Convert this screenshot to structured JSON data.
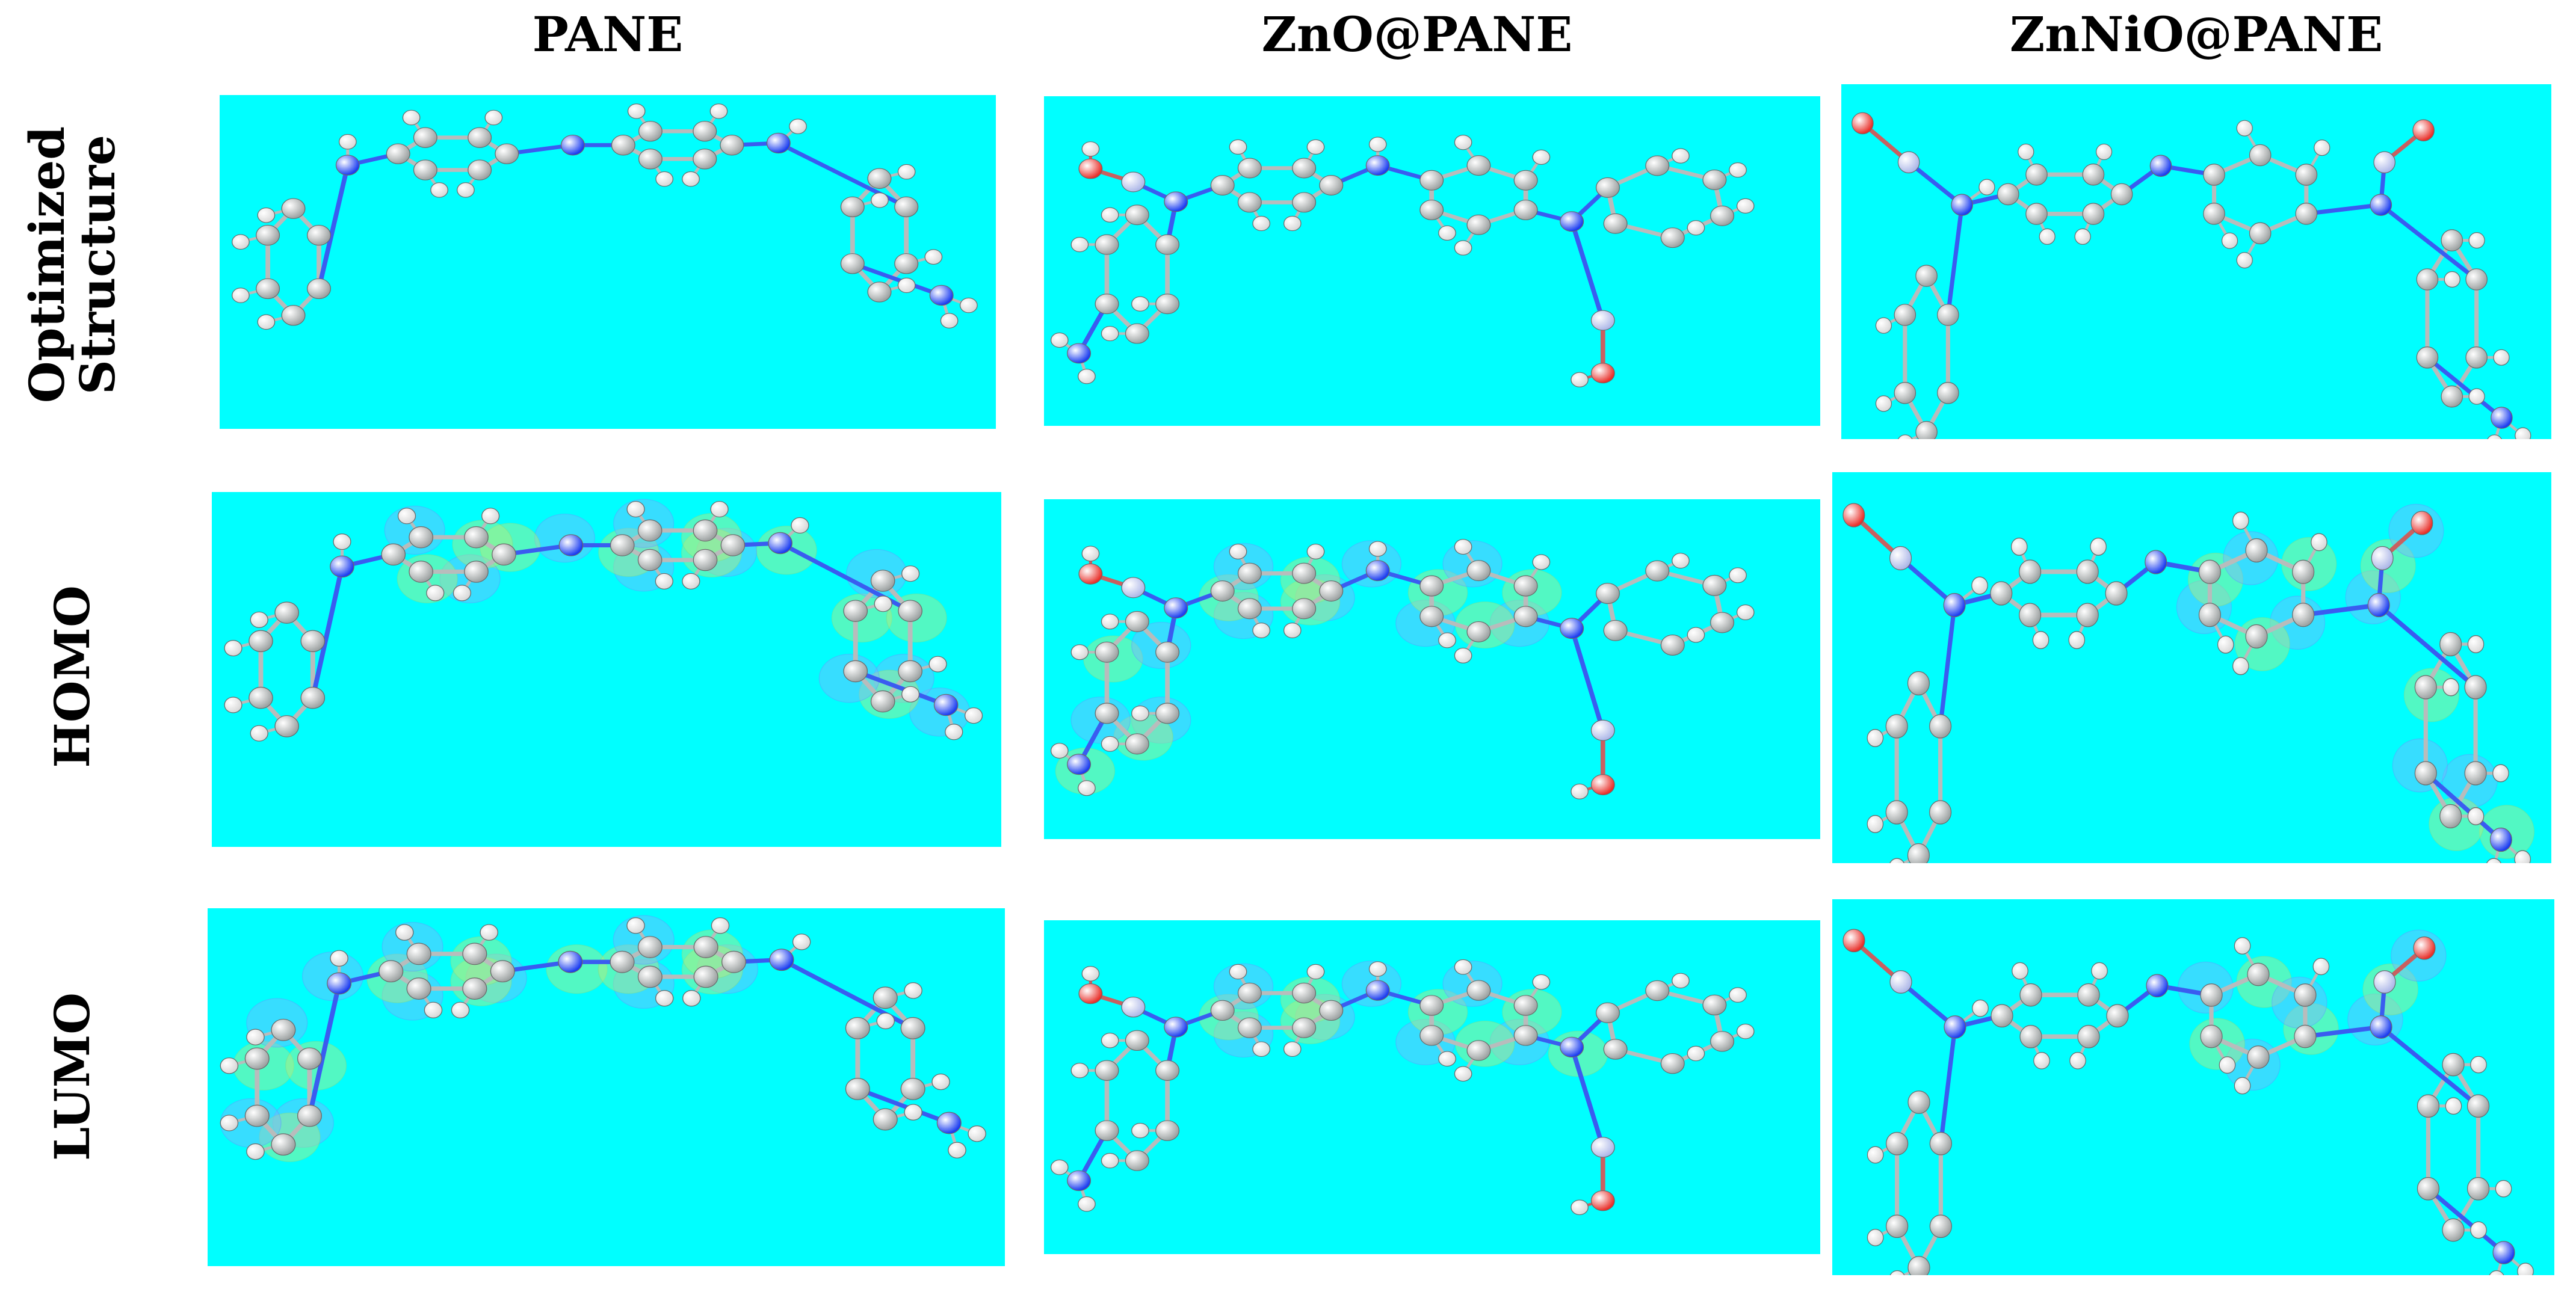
{
  "columns": [
    "PANE",
    "ZnO@PANE",
    "ZnNiO@PANE"
  ],
  "rows": [
    {
      "lines": [
        "Optimized",
        "Structure"
      ]
    },
    {
      "lines": [
        "HOMO"
      ]
    },
    {
      "lines": [
        "LUMO"
      ]
    }
  ],
  "colors": {
    "panel_background": "#00FFFF",
    "carbon": "#9EA3A3",
    "nitrogen": "#1A3CF0",
    "oxygen": "#E8302A",
    "hydrogen": "#FFFFFF",
    "metal": "#AEB8E8",
    "orbital_green": "#B6F07A",
    "orbital_blue": "#7AB4FF"
  }
}
